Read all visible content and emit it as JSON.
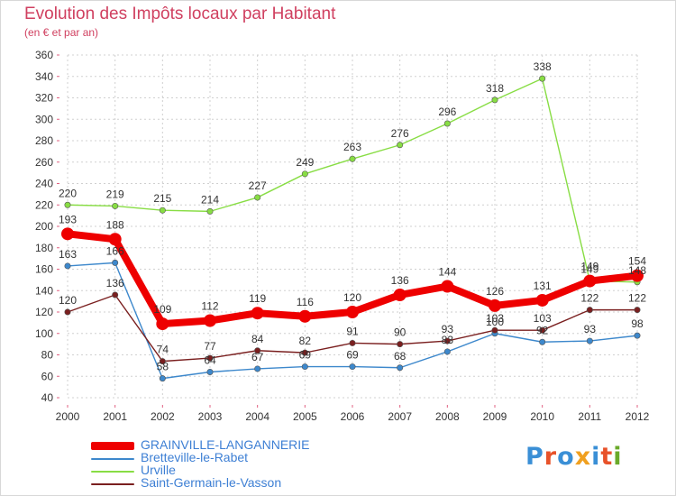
{
  "header": {
    "title": "Evolution des Impôts locaux par Habitant",
    "subtitle": "(en € et par an)"
  },
  "colors": {
    "title": "#d04060",
    "axis_text": "#333333",
    "grid": "#d0d0d0",
    "tick_marks": "#e06080",
    "legend_text": "#3d7fd4"
  },
  "logo": {
    "text": "Proxiti",
    "letter_colors": [
      "#3a8fd6",
      "#e8522a",
      "#3a8fd6",
      "#f0a020",
      "#3a8fd6",
      "#e8522a",
      "#6aaa2a"
    ]
  },
  "chart_data": {
    "type": "line",
    "title": "Evolution des Impôts locaux par Habitant",
    "subtitle": "(en € et par an)",
    "x": [
      "2000",
      "2001",
      "2002",
      "2003",
      "2004",
      "2005",
      "2006",
      "2007",
      "2008",
      "2009",
      "2010",
      "2011",
      "2012"
    ],
    "ylim": [
      40,
      360
    ],
    "yticks": [
      40,
      60,
      80,
      100,
      120,
      140,
      160,
      180,
      200,
      220,
      240,
      260,
      280,
      300,
      320,
      340,
      360
    ],
    "grid": true,
    "legend_position": "bottom-left",
    "series": [
      {
        "name": "GRAINVILLE-LANGANNERIE",
        "color": "#ee0000",
        "emphasis": "thick",
        "values": [
          193,
          188,
          109,
          112,
          119,
          116,
          120,
          136,
          144,
          126,
          131,
          149,
          154
        ],
        "labels": [
          "193",
          "188",
          "109",
          "112",
          "119",
          "116",
          "120",
          "136",
          "144",
          "126",
          "131",
          "149",
          "154"
        ]
      },
      {
        "name": "Bretteville-le-Rabet",
        "color": "#3d88cc",
        "emphasis": "thin",
        "values": [
          163,
          166,
          58,
          64,
          67,
          69,
          69,
          68,
          83,
          100,
          92,
          93,
          98
        ],
        "labels": [
          "163",
          "166",
          "58",
          "64",
          "67",
          "69",
          "69",
          "68",
          "83",
          "100",
          "92",
          "93",
          "98"
        ]
      },
      {
        "name": "Urville",
        "color": "#88dd44",
        "emphasis": "thin",
        "values": [
          220,
          219,
          215,
          214,
          227,
          249,
          263,
          276,
          296,
          318,
          338,
          149,
          148
        ],
        "labels": [
          "220",
          "219",
          "215",
          "214",
          "227",
          "249",
          "263",
          "276",
          "296",
          "318",
          "338",
          "149",
          "148"
        ]
      },
      {
        "name": "Saint-Germain-le-Vasson",
        "color": "#7a1f1f",
        "emphasis": "thin",
        "values": [
          120,
          136,
          74,
          77,
          84,
          82,
          91,
          90,
          93,
          103,
          103,
          122,
          122
        ],
        "labels": [
          "120",
          "136",
          "74",
          "77",
          "84",
          "82",
          "91",
          "90",
          "93",
          "103",
          "103",
          "122",
          "122"
        ]
      }
    ]
  }
}
